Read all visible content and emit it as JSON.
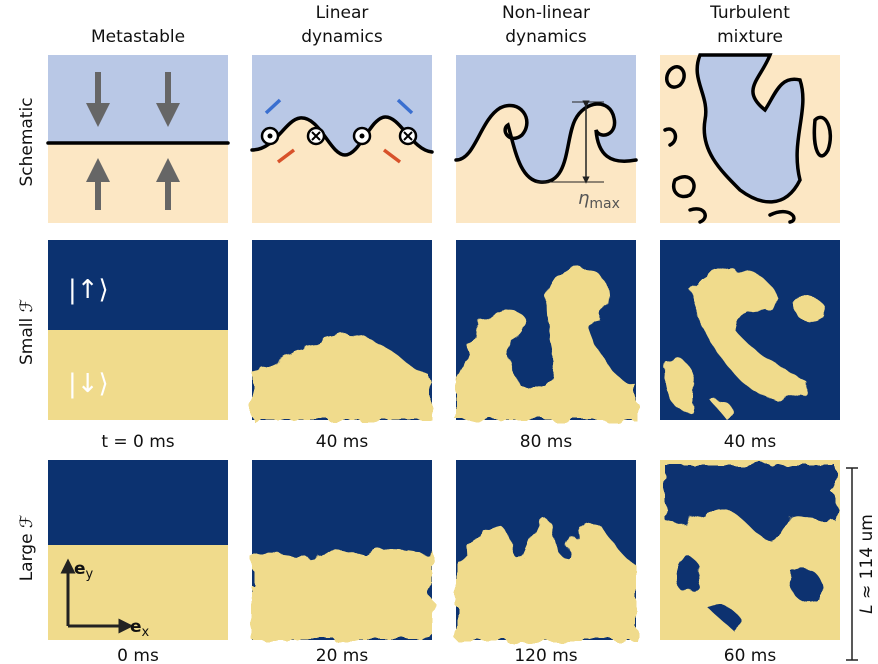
{
  "columns": [
    {
      "title": [
        "Metastable"
      ]
    },
    {
      "title": [
        "Linear",
        "dynamics"
      ]
    },
    {
      "title": [
        "Non-linear",
        "dynamics"
      ]
    },
    {
      "title": [
        "Turbulent",
        "mixture"
      ]
    }
  ],
  "rows": [
    "Schematic",
    "Small ℱ",
    "Large ℱ"
  ],
  "times": {
    "small": [
      "t = 0 ms",
      "40 ms",
      "80 ms",
      "40 ms"
    ],
    "large": [
      "0 ms",
      "20 ms",
      "120 ms",
      "60 ms"
    ]
  },
  "annotations": {
    "up": "|↑⟩",
    "down": "|↓⟩",
    "eta": "η",
    "eta_sub": "max",
    "ey": "e",
    "ey_sub": "y",
    "ex": "e",
    "ex_sub": "x",
    "scale_symbol": "L",
    "scale_text": " ≈ 114 um"
  }
}
